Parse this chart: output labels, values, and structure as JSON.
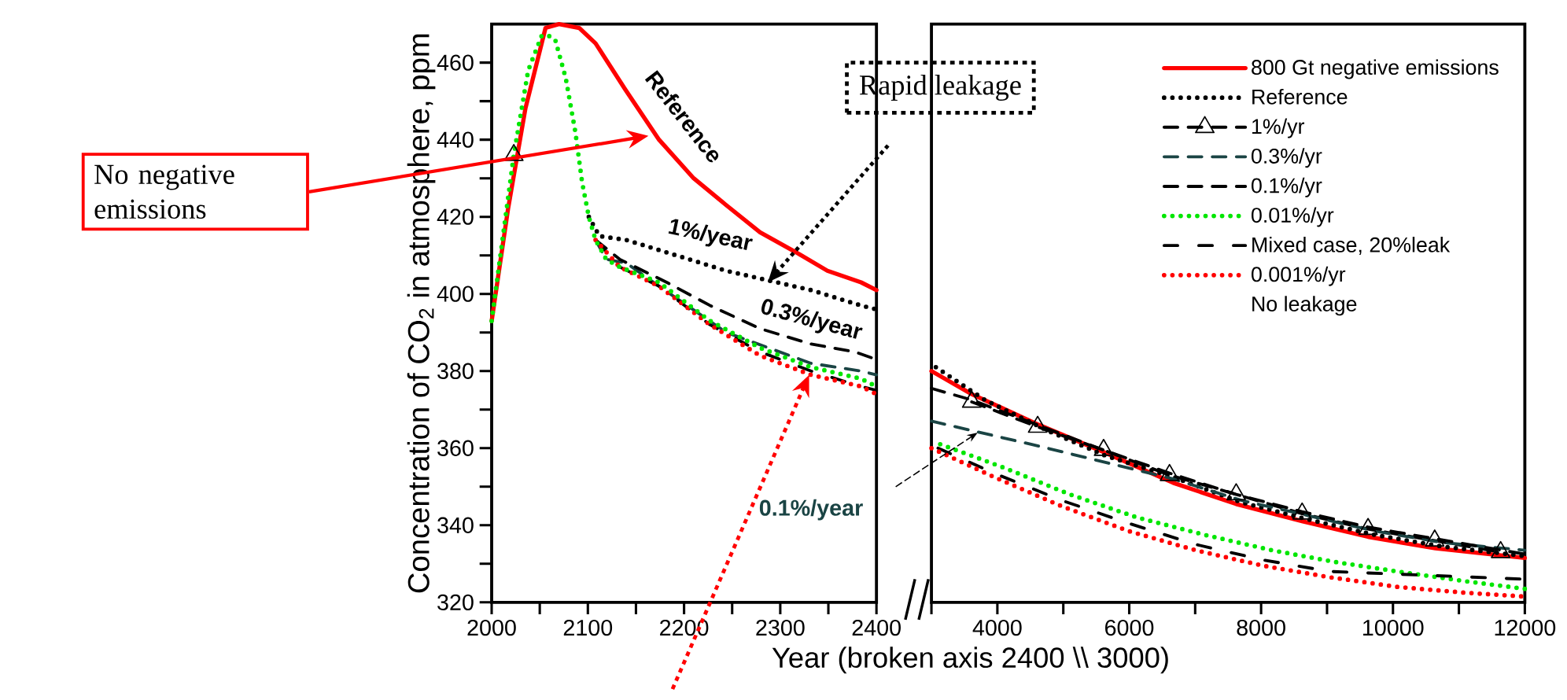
{
  "chart_data": [
    {
      "type": "line",
      "xlabel": "Year (broken axis 2400 \\\\ 3000)",
      "ylabel": "Concentration of CO$_{2}$ in atmosphere, ppm",
      "xlim": [
        2000,
        2400
      ],
      "ylim": [
        320,
        470
      ],
      "xticks": [
        2000,
        {
          "value": 2050,
          "label": null
        },
        2100,
        {
          "value": 2150,
          "label": null
        },
        2200,
        {
          "value": 2250,
          "label": null
        },
        2300,
        {
          "value": 2350,
          "label": null
        },
        2400
      ],
      "yticks": [
        320,
        {
          "value": 330,
          "label": null
        },
        340,
        {
          "value": 350,
          "label": null
        },
        360,
        {
          "value": 370,
          "label": null
        },
        380,
        {
          "value": 390,
          "label": null
        },
        400,
        {
          "value": 410,
          "label": null
        },
        420,
        {
          "value": 430,
          "label": null
        },
        440,
        {
          "value": 450,
          "label": null
        },
        460
      ],
      "series": [
        {
          "color": "#ff0000",
          "line_style": "solid",
          "x": [
            2000,
            2017,
            2035,
            2056,
            2070,
            2091,
            2108,
            2139,
            2174,
            2210,
            2244,
            2279,
            2315,
            2349,
            2384,
            2400
          ],
          "values": [
            393,
            422,
            448,
            469,
            470,
            469,
            465,
            453,
            440,
            430,
            423,
            416,
            411,
            406,
            403,
            401
          ]
        },
        {
          "color": "#000000",
          "line_style": "dotted",
          "x": [
            2101,
            2112,
            2140,
            2192,
            2244,
            2279,
            2332,
            2384,
            2400
          ],
          "values": [
            420,
            415,
            414,
            410,
            406,
            404,
            401,
            397,
            396
          ]
        },
        {
          "color": "#000000",
          "line_style": "dashed",
          "marker": "triangle",
          "x": [
            2023
          ],
          "values": [
            436
          ]
        },
        {
          "color": "#1a4444",
          "line_style": "dashed",
          "x": [
            2108,
            2119,
            2140,
            2174,
            2244,
            2332,
            2384,
            2400
          ],
          "values": [
            414,
            409,
            408,
            402,
            390,
            382,
            380,
            379
          ]
        },
        {
          "color": "#000000",
          "line_style": "dashed",
          "x": [
            2108,
            2133,
            2182,
            2227,
            2279,
            2332,
            2377,
            2400
          ],
          "values": [
            414,
            409,
            403,
            397,
            391,
            387,
            385,
            383
          ]
        },
        {
          "color": "#000000",
          "line_style": "dashdot",
          "x": [
            2108,
            2133,
            2174,
            2227,
            2279,
            2332,
            2384,
            2400
          ],
          "values": [
            414,
            407,
            402,
            392,
            385,
            380,
            376,
            375
          ]
        },
        {
          "color": "#ff0000",
          "line_style": "dotted",
          "x": [
            2108,
            2133,
            2174,
            2227,
            2279,
            2332,
            2384,
            2400
          ],
          "values": [
            414,
            407,
            402,
            392,
            384,
            379,
            376,
            374
          ]
        },
        {
          "color": "#00e600",
          "line_style": "dotted",
          "x": [
            2000,
            2023,
            2038,
            2052,
            2059,
            2066,
            2077,
            2087,
            2094,
            2101,
            2108,
            2119,
            2133,
            2174,
            2227,
            2279,
            2332,
            2384,
            2400
          ],
          "values": [
            393,
            436,
            458,
            467,
            467,
            466,
            456,
            442,
            429,
            420,
            414,
            409,
            407,
            403,
            393,
            386,
            381,
            378,
            376
          ]
        }
      ],
      "annotations": [
        "Reference",
        "1%/year",
        "0.3%/year",
        "0.1%/year",
        "No negative emissions",
        "Rapid leakage"
      ]
    },
    {
      "type": "line",
      "xlim": [
        3000,
        12000
      ],
      "ylim": [
        320,
        470
      ],
      "tick_labels": "x",
      "legend": "top right",
      "xticks": [
        {
          "value": 3000,
          "label": null
        },
        4000,
        {
          "value": 5000,
          "label": null
        },
        6000,
        {
          "value": 7000,
          "label": null
        },
        8000,
        {
          "value": 9000,
          "label": null
        },
        10000,
        {
          "value": 11000,
          "label": null
        },
        12000
      ],
      "series": [
        {
          "name": "800 Gt negative emissions",
          "color": "#ff0000",
          "line_style": "solid",
          "x": [
            3000,
            3611,
            4633,
            5611,
            6667,
            7622,
            8633,
            9622,
            10644,
            12000
          ],
          "values": [
            380,
            374,
            366,
            359,
            351,
            345.5,
            341,
            337,
            334,
            331.5
          ]
        },
        {
          "name": "Reference",
          "color": "#000000",
          "line_style": "dotted",
          "x": [
            3067,
            3811,
            4767,
            5644,
            6667,
            7689,
            8711,
            9722,
            10744,
            12000
          ],
          "values": [
            381,
            372.5,
            364.5,
            358,
            352.5,
            346,
            341.5,
            337.5,
            334.5,
            332
          ]
        },
        {
          "name": "1%/yr",
          "color": "#000000",
          "line_style": "dashed",
          "marker": "triangle",
          "x": [
            3611,
            4611,
            5611,
            6611,
            7622,
            8622,
            9622,
            10633,
            11633
          ],
          "values": [
            372,
            365.5,
            359.5,
            353,
            348,
            343,
            339,
            336,
            333
          ]
        },
        {
          "name": "0.3%/yr",
          "color": "#1a4444",
          "line_style": "dashed",
          "x": [
            3000,
            4633,
            6667,
            7689,
            8711,
            9722,
            10744,
            12000
          ],
          "values": [
            367,
            360.5,
            352,
            346.5,
            342.5,
            338.5,
            335.5,
            333.5
          ]
        },
        {
          "name": "0.1%/yr",
          "color": "#000000",
          "line_style": "dashed",
          "x": [
            3000,
            3611,
            4611,
            5611,
            6611,
            7622,
            8622,
            9622,
            10633,
            12000
          ],
          "values": [
            375.5,
            372.5,
            366,
            359.5,
            353.5,
            348,
            343.5,
            339.5,
            336.5,
            332.5
          ]
        },
        {
          "name": "0.01%/yr",
          "color": "#00e600",
          "line_style": "dotted",
          "x": [
            3133,
            4089,
            5100,
            6122,
            7144,
            8167,
            9111,
            10067,
            11089,
            12000
          ],
          "values": [
            361,
            355,
            348,
            342,
            337.5,
            333.5,
            330.5,
            328,
            325.5,
            323.5
          ]
        },
        {
          "name": "Mixed case, 20%leak",
          "color": "#000000",
          "line_style": "dashdot",
          "x": [
            3100,
            3950,
            4967,
            5989,
            7011,
            8028,
            9044,
            10000,
            12000
          ],
          "values": [
            360,
            353.5,
            346.5,
            340.5,
            335,
            331,
            328,
            null,
            326
          ]
        },
        {
          "name": "0.001%/yr",
          "color": "#ff0000",
          "line_style": "dotted",
          "x": [
            3000,
            3950,
            4967,
            5989,
            7011,
            8028,
            9044,
            10067,
            11089,
            12000
          ],
          "values": [
            360,
            352.5,
            345,
            338.5,
            333.5,
            329.5,
            326.5,
            324,
            322.5,
            321.5
          ]
        }
      ],
      "annotations": [
        "No leakage"
      ]
    }
  ]
}
